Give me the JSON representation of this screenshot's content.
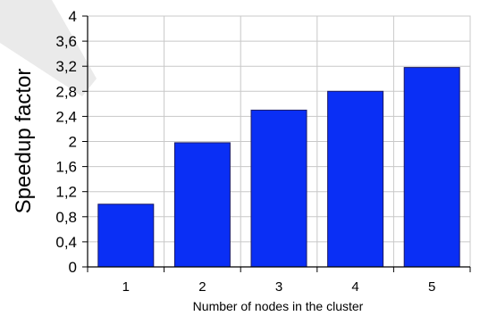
{
  "chart_data": {
    "type": "bar",
    "categories": [
      "1",
      "2",
      "3",
      "4",
      "5"
    ],
    "values": [
      1.0,
      1.98,
      2.5,
      2.8,
      3.18
    ],
    "title": "",
    "xlabel": "Number of nodes in the cluster",
    "ylabel": "Speedup factor",
    "ylim": [
      0,
      4
    ],
    "yticks": [
      "0",
      "0,4",
      "0,8",
      "1,2",
      "1,6",
      "2",
      "2,4",
      "2,8",
      "3,2",
      "3,6",
      "4"
    ],
    "grid": true,
    "legend": "none",
    "colors": {
      "bar": "#0a2ff5",
      "bar_edge": "#1a1a66",
      "grid": "#c8c8c8",
      "axis": "#000000"
    }
  }
}
